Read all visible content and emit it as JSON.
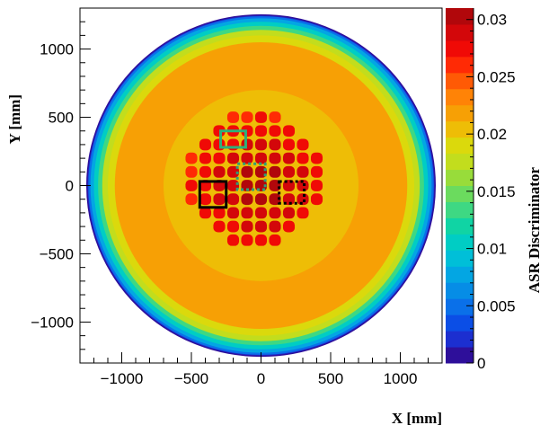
{
  "chart_data": {
    "type": "heatmap",
    "title": "",
    "xlabel": "X [mm]",
    "ylabel": "Y [mm]",
    "colorbar_label": "ASR Discriminator",
    "xlim": [
      -1300,
      1300
    ],
    "ylim": [
      -1300,
      1300
    ],
    "zlim": [
      0,
      0.031
    ],
    "x_ticks": [
      -1000,
      -500,
      0,
      500,
      1000
    ],
    "x_tick_labels": [
      "−1000",
      "−500",
      "0",
      "500",
      "1000"
    ],
    "y_ticks": [
      -1000,
      -500,
      0,
      500,
      1000
    ],
    "y_tick_labels": [
      "−1000",
      "−500",
      "0",
      "500",
      "1000"
    ],
    "z_ticks": [
      0,
      0.005,
      0.01,
      0.015,
      0.02,
      0.025,
      0.03
    ],
    "z_tick_labels": [
      "0",
      "0.005",
      "0.01",
      "0.015",
      "0.02",
      "0.025",
      "0.03"
    ],
    "detector_radius": 1250,
    "radial_profile": [
      {
        "r_min": 0,
        "r_max": 700,
        "value": 0.0205
      },
      {
        "r_min": 700,
        "r_max": 1050,
        "value": 0.0225
      },
      {
        "r_min": 1050,
        "r_max": 1100,
        "value": 0.0195
      },
      {
        "r_min": 1100,
        "r_max": 1140,
        "value": 0.017
      },
      {
        "r_min": 1140,
        "r_max": 1170,
        "value": 0.014
      },
      {
        "r_min": 1170,
        "r_max": 1200,
        "value": 0.011
      },
      {
        "r_min": 1200,
        "r_max": 1225,
        "value": 0.008
      },
      {
        "r_min": 1225,
        "r_max": 1240,
        "value": 0.005
      },
      {
        "r_min": 1240,
        "r_max": 1250,
        "value": 0.002
      }
    ],
    "central_cluster": {
      "spacing": 100,
      "min_value": 0.026,
      "max_value": 0.031,
      "rows": [
        {
          "y": 500,
          "x_start": -200,
          "count": 4
        },
        {
          "y": 400,
          "x_start": -300,
          "count": 6
        },
        {
          "y": 300,
          "x_start": -400,
          "count": 8
        },
        {
          "y": 200,
          "x_start": -500,
          "count": 10
        },
        {
          "y": 100,
          "x_start": -500,
          "count": 10
        },
        {
          "y": 0,
          "x_start": -500,
          "count": 10
        },
        {
          "y": -100,
          "x_start": -500,
          "count": 10
        },
        {
          "y": -200,
          "x_start": -400,
          "count": 8
        },
        {
          "y": -300,
          "x_start": -300,
          "count": 6
        },
        {
          "y": -400,
          "x_start": -200,
          "count": 4
        }
      ]
    },
    "annotation_boxes": [
      {
        "name": "green-solid-box",
        "x": [
          -290,
          -110
        ],
        "y": [
          280,
          400
        ],
        "color": "#2eb07a",
        "style": "solid"
      },
      {
        "name": "green-dotted-box",
        "x": [
          -170,
          30
        ],
        "y": [
          -30,
          160
        ],
        "color": "#2e9e78",
        "style": "dotted"
      },
      {
        "name": "black-solid-box",
        "x": [
          -440,
          -250
        ],
        "y": [
          -160,
          30
        ],
        "color": "#000000",
        "style": "solid"
      },
      {
        "name": "black-dotted-box",
        "x": [
          130,
          310
        ],
        "y": [
          -130,
          30
        ],
        "color": "#000000",
        "style": "dotted"
      }
    ],
    "colormap": [
      "#2e0f9a",
      "#1c2fd0",
      "#0b4ee6",
      "#0a70e9",
      "#068de6",
      "#03a6e3",
      "#00bfd8",
      "#00cdc4",
      "#10d4a4",
      "#3ed883",
      "#6bdb5e",
      "#98dc3a",
      "#c2dd1d",
      "#dbd90c",
      "#eebd06",
      "#f7a005",
      "#ff8306",
      "#ff5a05",
      "#ff2a05",
      "#f00a06",
      "#d3070a",
      "#b1070b"
    ],
    "grid": false,
    "legend": "colorbar-right"
  }
}
